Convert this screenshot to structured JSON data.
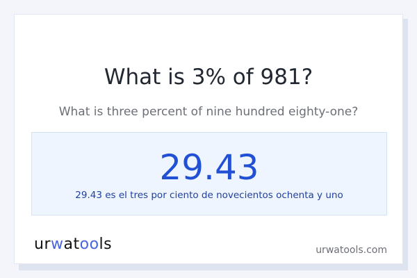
{
  "header": {
    "title": "What is 3% of 981?",
    "subtitle": "What is three percent of nine hundred eighty-one?"
  },
  "result": {
    "value": "29.43",
    "description": "29.43 es el tres por ciento de novecientos ochenta y uno"
  },
  "footer": {
    "logo": "urwatools",
    "site": "urwatools.com"
  },
  "colors": {
    "accent": "#2250d4",
    "result_bg": "#eef5ff",
    "logo_blue": "#4a63e0"
  }
}
